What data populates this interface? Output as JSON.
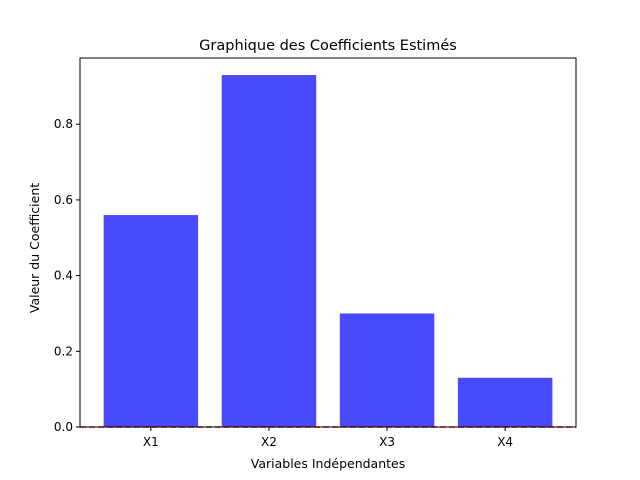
{
  "chart_data": {
    "type": "bar",
    "title": "Graphique des Coefficients Estimés",
    "xlabel": "Variables Indépendantes",
    "ylabel": "Valeur du Coefficient",
    "categories": [
      "X1",
      "X2",
      "X3",
      "X4"
    ],
    "values": [
      0.56,
      0.93,
      0.3,
      0.13
    ],
    "ylim": [
      0,
      0.975
    ],
    "yticks": [
      0.0,
      0.2,
      0.4,
      0.6,
      0.8
    ],
    "ytick_labels": [
      "0.0",
      "0.2",
      "0.4",
      "0.6",
      "0.8"
    ],
    "bar_color": "#4a4aff",
    "reference_line": {
      "y": 0,
      "color": "#cc0000",
      "style": "dashed"
    },
    "grid": false,
    "legend": "none"
  }
}
